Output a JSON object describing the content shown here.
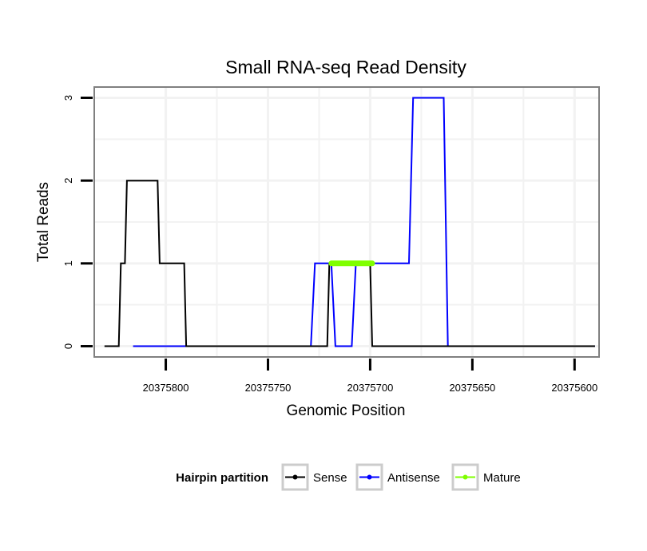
{
  "chart_data": {
    "type": "line",
    "title": "Small RNA-seq Read Density",
    "xlabel": "Genomic Position",
    "ylabel": "Total Reads",
    "x_reversed": true,
    "xlim": [
      20375835,
      20375588
    ],
    "ylim": [
      -0.13,
      3.13
    ],
    "x_ticks": [
      20375800,
      20375750,
      20375700,
      20375650,
      20375600
    ],
    "x_tick_labels": [
      "20375800",
      "20375750",
      "20375700",
      "20375650",
      "20375600"
    ],
    "y_ticks": [
      0,
      1,
      2,
      3
    ],
    "y_tick_labels": [
      "0",
      "1",
      "2",
      "3"
    ],
    "grid": true,
    "legend": {
      "title": "Hairpin partition",
      "position": "bottom",
      "entries": [
        "Sense",
        "Antisense",
        "Mature"
      ]
    },
    "series": [
      {
        "name": "Antisense",
        "color": "#0000ff",
        "x": [
          20375816,
          20375729,
          20375727,
          20375719,
          20375717,
          20375709,
          20375707,
          20375681,
          20375679,
          20375664,
          20375662,
          20375590
        ],
        "y": [
          0,
          0,
          1,
          1,
          0,
          0,
          1,
          1,
          3,
          3,
          0,
          0
        ]
      },
      {
        "name": "Sense",
        "color": "#000000",
        "x": [
          20375830,
          20375823,
          20375822,
          20375820,
          20375819,
          20375812,
          20375804,
          20375803,
          20375791,
          20375790,
          20375721,
          20375720,
          20375710,
          20375709,
          20375700,
          20375699,
          20375590
        ],
        "y": [
          0,
          0,
          1,
          1,
          2,
          2,
          2,
          1,
          1,
          0,
          0,
          1,
          1,
          1,
          1,
          0,
          0
        ]
      },
      {
        "name": "Mature",
        "color": "#7fff00",
        "x": [
          20375719,
          20375699
        ],
        "y": [
          1,
          1
        ]
      }
    ]
  }
}
